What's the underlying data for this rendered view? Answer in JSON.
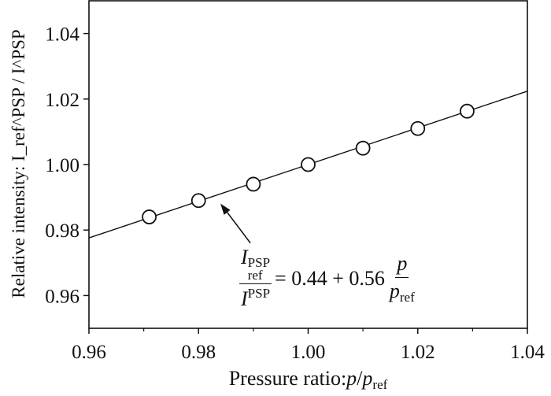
{
  "chart_data": {
    "type": "scatter",
    "title": "",
    "xlabel": "Pressure ratio: p/p_ref",
    "ylabel": "Relative intensity: I_ref^PSP / I^PSP",
    "xlim": [
      0.96,
      1.04
    ],
    "ylim": [
      0.95,
      1.05
    ],
    "xticks": [
      "0.96",
      "0.98",
      "1.00",
      "1.02",
      "1.04"
    ],
    "yticks": [
      "0.96",
      "0.98",
      "1.00",
      "1.02",
      "1.04"
    ],
    "grid": false,
    "points": {
      "x": [
        0.971,
        0.98,
        0.99,
        1.0,
        1.01,
        1.02,
        1.029
      ],
      "y": [
        0.984,
        0.989,
        0.994,
        1.0,
        1.005,
        1.011,
        1.0163
      ]
    },
    "fit_line": {
      "intercept": 0.44,
      "slope": 0.56
    },
    "annotation": {
      "lhs_num": "I",
      "lhs_num_sub": "ref",
      "lhs_num_sup": "PSP",
      "lhs_den": "I",
      "lhs_den_sup": "PSP",
      "rhs": "= 0.44 + 0.56",
      "rhs_num": "p",
      "rhs_den": "p",
      "rhs_den_sub": "ref",
      "arrow_to": [
        0.984,
        0.9895
      ]
    },
    "labels": {
      "x_text": "Pressure ratio:",
      "x_p": "p",
      "x_slash": "/",
      "x_pref": "p",
      "x_ref": "ref",
      "y_text": "Relative intensity:",
      "y_I": "I",
      "y_ref": "ref",
      "y_psp": "PSP",
      "y_slash": " / ",
      "y_I2": "I",
      "y_psp2": "PSP"
    }
  }
}
